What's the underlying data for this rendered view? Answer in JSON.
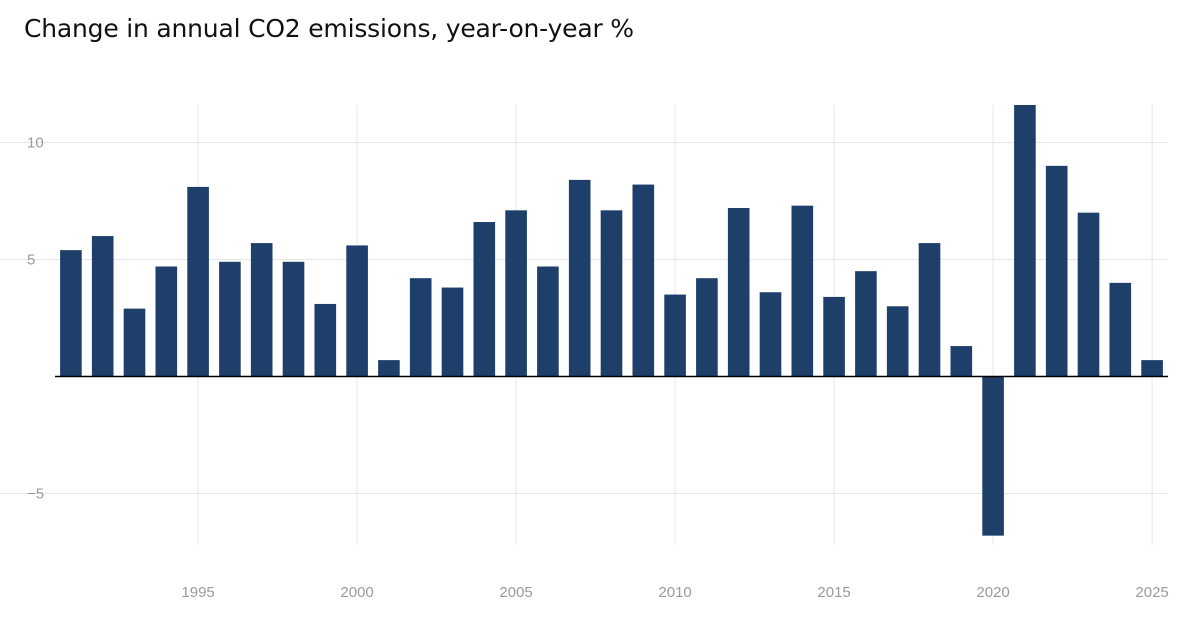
{
  "header": {
    "subtitle": "Change in annual CO2 emissions, year-on-year %"
  },
  "colors": {
    "bar": "#1f3f6b",
    "grid": "#e6e6e6",
    "zero_line": "#000000",
    "tick_text": "#9a9a9a"
  },
  "chart_data": {
    "type": "bar",
    "title": "",
    "subtitle": "Change in annual CO2 emissions, year-on-year %",
    "xlabel": "",
    "ylabel": "",
    "x": [
      1991,
      1992,
      1993,
      1994,
      1995,
      1996,
      1997,
      1998,
      1999,
      2000,
      2001,
      2002,
      2003,
      2004,
      2005,
      2006,
      2007,
      2008,
      2009,
      2010,
      2011,
      2012,
      2013,
      2014,
      2015,
      2016,
      2017,
      2018,
      2019,
      2020,
      2021,
      2022,
      2023,
      2024,
      2025
    ],
    "values": [
      5.4,
      6.0,
      2.9,
      4.7,
      8.1,
      4.9,
      5.7,
      4.9,
      3.1,
      5.6,
      0.7,
      4.2,
      3.8,
      6.6,
      7.1,
      4.7,
      8.4,
      7.1,
      8.2,
      3.5,
      4.2,
      7.2,
      3.6,
      7.3,
      3.4,
      4.5,
      3.0,
      5.7,
      1.3,
      -6.8,
      11.6,
      9.0,
      7.0,
      4.0,
      0.7
    ],
    "xticks": [
      1995,
      2000,
      2005,
      2010,
      2015,
      2020,
      2025
    ],
    "yticks": [
      -5,
      5,
      10
    ],
    "ytick_labels": [
      "−5",
      "5",
      "10"
    ],
    "ylim": [
      -7.2,
      11.6
    ],
    "xlim": [
      1990.5,
      2025.5
    ],
    "grid": true,
    "legend": "none"
  }
}
